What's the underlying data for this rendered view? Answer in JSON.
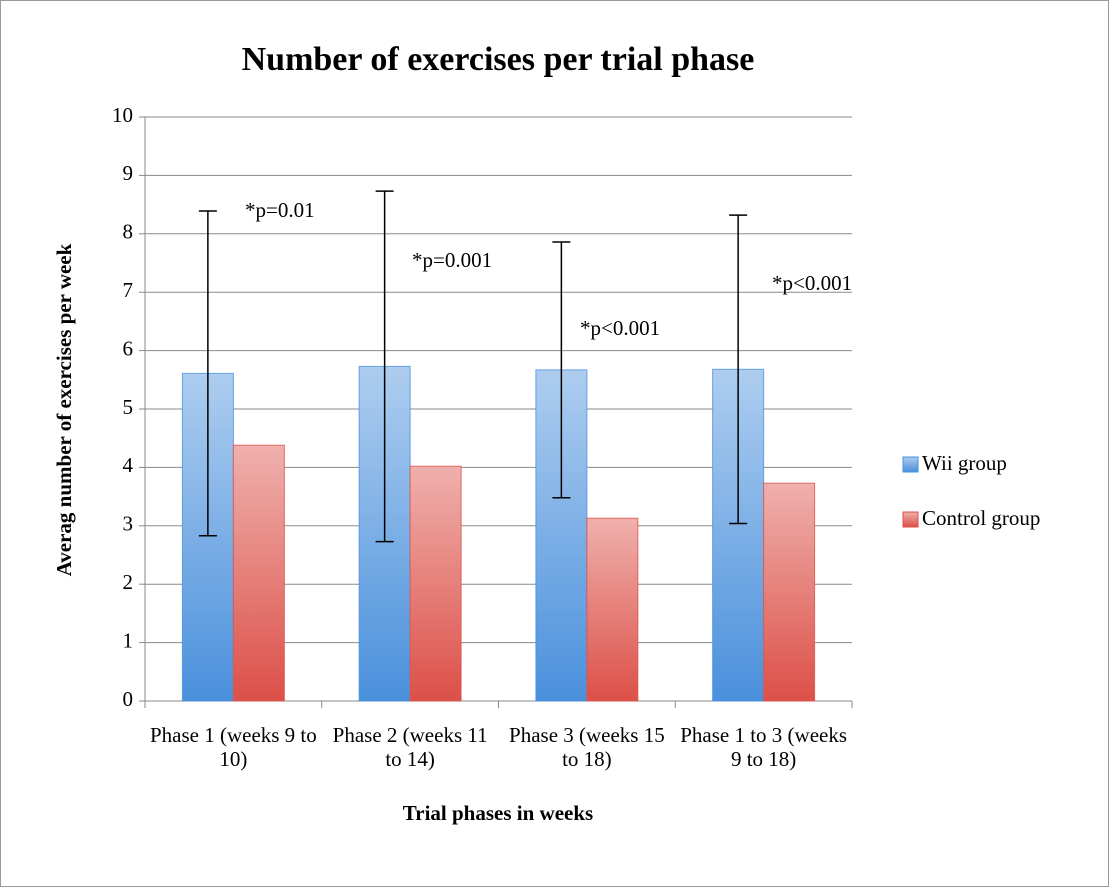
{
  "chart_data": {
    "type": "bar",
    "title": "Number of exercises per trial phase",
    "x_label": "Trial phases in weeks",
    "y_label": "Averag number of exercises per week",
    "categories": [
      "Phase 1 (weeks 9 to 10)",
      "Phase 2 (weeks 11 to 14)",
      "Phase 3 (weeks 15 to 18)",
      "Phase 1 to 3 (weeks 9 to 18)"
    ],
    "series": [
      {
        "name": "Wii group",
        "color": "#4a90dc",
        "values": [
          5.61,
          5.73,
          5.67,
          5.68
        ],
        "errors": [
          2.78,
          3.0,
          2.19,
          2.64
        ]
      },
      {
        "name": "Control group",
        "color": "#dc5048",
        "values": [
          4.38,
          4.02,
          3.13,
          3.73
        ]
      }
    ],
    "annotations": [
      "*p=0.01",
      "*p=0.001",
      "*p<0.001",
      "*p<0.001"
    ],
    "ylim": [
      0,
      10
    ],
    "yticks": [
      0,
      1,
      2,
      3,
      4,
      5,
      6,
      7,
      8,
      9,
      10
    ],
    "grid": true,
    "legend": "right"
  }
}
